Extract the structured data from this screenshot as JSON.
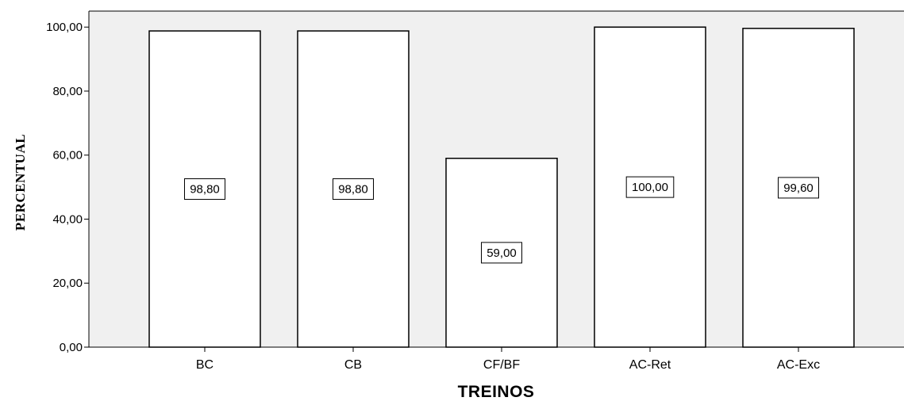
{
  "chart_data": {
    "type": "bar",
    "categories": [
      "BC",
      "CB",
      "CF/BF",
      "AC-Ret",
      "AC-Exc"
    ],
    "values": [
      98.8,
      98.8,
      59.0,
      100.0,
      99.6
    ],
    "data_labels": [
      "98,80",
      "98,80",
      "59,00",
      "100,00",
      "99,60"
    ],
    "xlabel": "TREINOS",
    "ylabel": "PERCENTUAL",
    "ylim": [
      0,
      105
    ],
    "yticks": [
      0,
      20,
      40,
      60,
      80,
      100
    ],
    "ytick_labels": [
      "0,00",
      "20,00",
      "40,00",
      "60,00",
      "80,00",
      "100,00"
    ],
    "grid": false,
    "colors": {
      "plot_background": "#f0f0f0",
      "bar_fill": "#ffffff",
      "bar_stroke": "#000000"
    }
  }
}
